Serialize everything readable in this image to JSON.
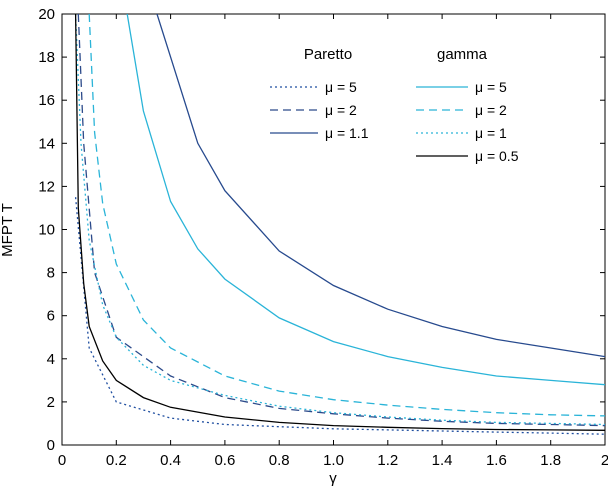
{
  "chart_data": {
    "type": "line",
    "xlabel": "γ",
    "ylabel": "MFPT T",
    "xlim": [
      0,
      2
    ],
    "ylim": [
      0,
      20
    ],
    "xticks": [
      "0",
      "0.2",
      "0.4",
      "0.6",
      "0.8",
      "1.0",
      "1.2",
      "1.4",
      "1.6",
      "1.8",
      "2"
    ],
    "yticks": [
      "0",
      "2",
      "4",
      "6",
      "8",
      "10",
      "12",
      "14",
      "16",
      "18",
      "20"
    ],
    "grid": false,
    "legend_groups": [
      {
        "title": "Paretto",
        "placement": "top-center"
      },
      {
        "title": "gamma",
        "placement": "top-right"
      }
    ],
    "series": [
      {
        "name": "μ = 5",
        "group": "Paretto",
        "color": "#1f4ea0",
        "dash": "dotted",
        "x": [
          0.05,
          0.1,
          0.2,
          0.4,
          0.6,
          0.8,
          1.0,
          1.2,
          1.4,
          1.6,
          1.8,
          2.0
        ],
        "y": [
          11.5,
          4.5,
          2.0,
          1.25,
          0.95,
          0.85,
          0.75,
          0.7,
          0.65,
          0.6,
          0.55,
          0.5
        ]
      },
      {
        "name": "μ = 2",
        "group": "Paretto",
        "color": "#2c4a8a",
        "dash": "dashed",
        "x": [
          0.06,
          0.08,
          0.12,
          0.2,
          0.4,
          0.6,
          0.8,
          1.0,
          1.2,
          1.4,
          1.6,
          1.8,
          2.0
        ],
        "y": [
          20,
          14,
          8.0,
          5.0,
          3.2,
          2.2,
          1.7,
          1.45,
          1.25,
          1.1,
          1.0,
          0.95,
          0.9
        ]
      },
      {
        "name": "μ = 1.1",
        "group": "Paretto",
        "color": "#274a8e",
        "dash": "solid",
        "x": [
          0.35,
          0.4,
          0.5,
          0.6,
          0.8,
          1.0,
          1.2,
          1.4,
          1.6,
          1.8,
          2.0
        ],
        "y": [
          20,
          18.0,
          14.0,
          11.8,
          9.0,
          7.4,
          6.3,
          5.5,
          4.9,
          4.5,
          4.1
        ]
      },
      {
        "name": "μ = 5",
        "group": "gamma",
        "color": "#2ab4d8",
        "dash": "solid",
        "x": [
          0.24,
          0.3,
          0.4,
          0.5,
          0.6,
          0.8,
          1.0,
          1.2,
          1.4,
          1.6,
          1.8,
          2.0
        ],
        "y": [
          20,
          15.5,
          11.3,
          9.1,
          7.7,
          5.9,
          4.8,
          4.1,
          3.6,
          3.2,
          3.0,
          2.8
        ]
      },
      {
        "name": "μ = 2",
        "group": "gamma",
        "color": "#2ab4d8",
        "dash": "dashed",
        "x": [
          0.1,
          0.12,
          0.15,
          0.2,
          0.3,
          0.4,
          0.6,
          0.8,
          1.0,
          1.2,
          1.4,
          1.6,
          1.8,
          2.0
        ],
        "y": [
          20,
          14.5,
          11.2,
          8.4,
          5.8,
          4.5,
          3.2,
          2.5,
          2.1,
          1.85,
          1.65,
          1.5,
          1.4,
          1.35
        ]
      },
      {
        "name": "μ = 1",
        "group": "gamma",
        "color": "#2ab4d8",
        "dash": "dotted",
        "x": [
          0.05,
          0.07,
          0.1,
          0.15,
          0.2,
          0.3,
          0.4,
          0.6,
          0.8,
          1.0,
          1.2,
          1.4,
          1.6,
          1.8,
          2.0
        ],
        "y": [
          20,
          14.0,
          9.5,
          6.5,
          5.0,
          3.7,
          3.0,
          2.3,
          1.8,
          1.5,
          1.3,
          1.15,
          1.05,
          1.0,
          0.95
        ]
      },
      {
        "name": "μ = 0.5",
        "group": "gamma",
        "color": "#000000",
        "dash": "solid",
        "x": [
          0.05,
          0.06,
          0.08,
          0.1,
          0.15,
          0.2,
          0.3,
          0.4,
          0.6,
          0.8,
          1.0,
          1.2,
          1.4,
          1.6,
          1.8,
          2.0
        ],
        "y": [
          20,
          11.0,
          7.5,
          5.5,
          3.9,
          3.0,
          2.2,
          1.75,
          1.3,
          1.05,
          0.9,
          0.82,
          0.76,
          0.72,
          0.7,
          0.68
        ]
      }
    ]
  }
}
